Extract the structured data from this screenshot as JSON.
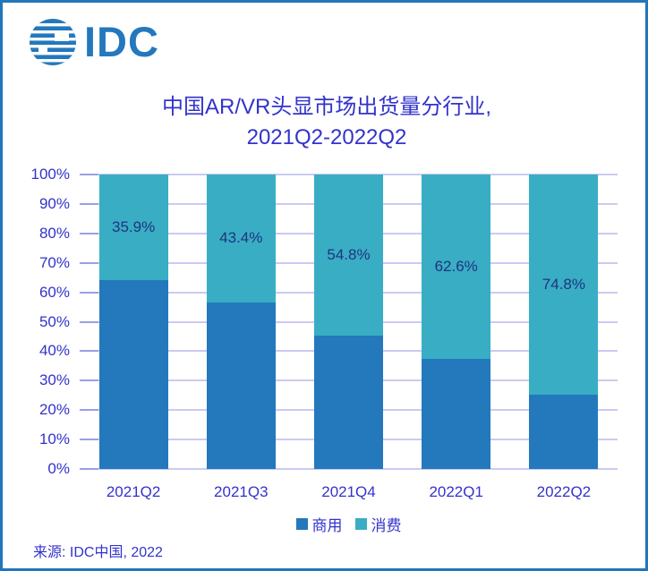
{
  "window": {
    "border_color": "#2176bc",
    "background": "#ffffff"
  },
  "logo": {
    "text": "IDC",
    "color": "#2478bd",
    "icon": "striped-globe-icon"
  },
  "title": {
    "line1": "中国AR/VR头显市场出货量分行业,",
    "line2": "2021Q2-2022Q2",
    "color": "#3333cc"
  },
  "source": {
    "text": "来源: IDC中国, 2022"
  },
  "chart_data": {
    "type": "bar",
    "variant": "100%-stacked-column",
    "title": "中国AR/VR头显市场出货量分行业, 2021Q2-2022Q2",
    "categories": [
      "2021Q2",
      "2021Q3",
      "2021Q4",
      "2022Q1",
      "2022Q2"
    ],
    "series": [
      {
        "name": "商用",
        "color": "#2478bc",
        "values": [
          64.1,
          56.6,
          45.2,
          37.4,
          25.2
        ]
      },
      {
        "name": "消费",
        "color": "#39adc4",
        "values": [
          35.9,
          43.4,
          54.8,
          62.6,
          74.8
        ]
      }
    ],
    "data_labels": {
      "on_series": "消费",
      "values": [
        "35.9%",
        "43.4%",
        "54.8%",
        "62.6%",
        "74.8%"
      ],
      "color": "#1f3480"
    },
    "xlabel": "",
    "ylabel": "",
    "ylim": [
      0,
      100
    ],
    "yticks": [
      "0%",
      "10%",
      "20%",
      "30%",
      "40%",
      "50%",
      "60%",
      "70%",
      "80%",
      "90%",
      "100%"
    ],
    "grid": true,
    "gridline_color": "#c9cbf2",
    "axis_label_color": "#3333cc",
    "legend": {
      "position": "bottom",
      "entries": [
        "商用",
        "消费"
      ]
    }
  }
}
